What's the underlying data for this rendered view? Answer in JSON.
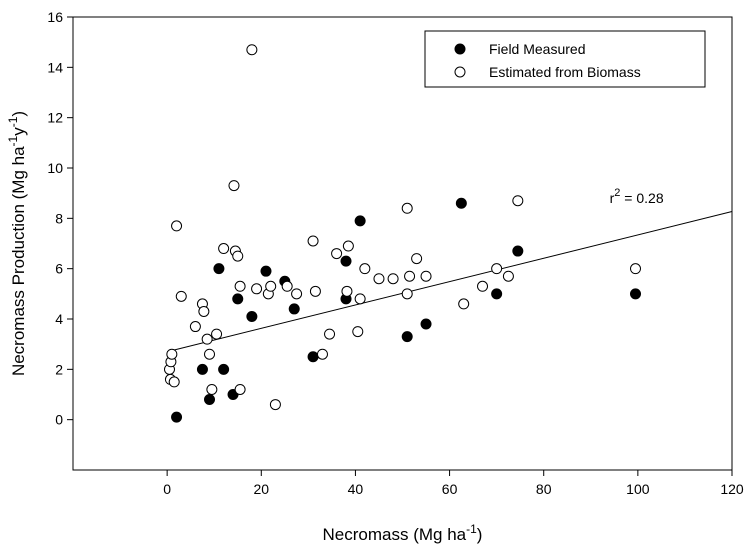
{
  "chart_data": {
    "type": "scatter",
    "title": "",
    "xlabel": {
      "base": "Necromass (Mg ha",
      "sup": "-1",
      "tail": ")"
    },
    "ylabel": {
      "base": "Necromass Production (Mg ha",
      "sup1": "-1",
      "mid": "y",
      "sup2": "-1",
      "tail": ")"
    },
    "xlim": [
      -20,
      120
    ],
    "ylim": [
      -2,
      16
    ],
    "xticks": [
      0,
      20,
      40,
      60,
      80,
      100,
      120
    ],
    "yticks": [
      0,
      2,
      4,
      6,
      8,
      10,
      12,
      14,
      16
    ],
    "grid": false,
    "legend": {
      "position": "top-right"
    },
    "series": [
      {
        "name": "Field Measured",
        "marker": "filled-circle",
        "points": [
          [
            2,
            0.1
          ],
          [
            7.5,
            2.0
          ],
          [
            9,
            0.8
          ],
          [
            11,
            6.0
          ],
          [
            12,
            2.0
          ],
          [
            14,
            1.0
          ],
          [
            15,
            4.8
          ],
          [
            18,
            4.1
          ],
          [
            21,
            5.9
          ],
          [
            25,
            5.5
          ],
          [
            27,
            4.4
          ],
          [
            31,
            2.5
          ],
          [
            38,
            4.8
          ],
          [
            38,
            6.3
          ],
          [
            41,
            7.9
          ],
          [
            51,
            3.3
          ],
          [
            55,
            3.8
          ],
          [
            62.5,
            8.6
          ],
          [
            70,
            5.0
          ],
          [
            74.5,
            6.7
          ],
          [
            99.5,
            5.0
          ]
        ]
      },
      {
        "name": "Estimated from Biomass",
        "marker": "open-circle",
        "points": [
          [
            0.5,
            2.0
          ],
          [
            0.7,
            1.6
          ],
          [
            0.8,
            2.3
          ],
          [
            1,
            2.6
          ],
          [
            1.5,
            1.5
          ],
          [
            2,
            7.7
          ],
          [
            3,
            4.9
          ],
          [
            6,
            3.7
          ],
          [
            7.5,
            4.6
          ],
          [
            7.8,
            4.3
          ],
          [
            8.5,
            3.2
          ],
          [
            9,
            2.6
          ],
          [
            9.5,
            1.2
          ],
          [
            10.5,
            3.4
          ],
          [
            12,
            6.8
          ],
          [
            14.5,
            6.7
          ],
          [
            14.2,
            9.3
          ],
          [
            15,
            6.5
          ],
          [
            15.5,
            5.3
          ],
          [
            15.5,
            1.2
          ],
          [
            18,
            14.7
          ],
          [
            19,
            5.2
          ],
          [
            21.5,
            5.0
          ],
          [
            22,
            5.3
          ],
          [
            23,
            0.6
          ],
          [
            25.5,
            5.3
          ],
          [
            27.5,
            5.0
          ],
          [
            31,
            7.1
          ],
          [
            31.5,
            5.1
          ],
          [
            33,
            2.6
          ],
          [
            34.5,
            3.4
          ],
          [
            36,
            6.6
          ],
          [
            38.2,
            5.1
          ],
          [
            38.5,
            6.9
          ],
          [
            40.5,
            3.5
          ],
          [
            41,
            4.8
          ],
          [
            42,
            6.0
          ],
          [
            45,
            5.6
          ],
          [
            48,
            5.6
          ],
          [
            51,
            8.4
          ],
          [
            51,
            5.0
          ],
          [
            51.5,
            5.7
          ],
          [
            53,
            6.4
          ],
          [
            55,
            5.7
          ],
          [
            63,
            4.6
          ],
          [
            67,
            5.3
          ],
          [
            70,
            6.0
          ],
          [
            72.5,
            5.7
          ],
          [
            74.5,
            8.7
          ],
          [
            99.5,
            6.0
          ]
        ]
      }
    ],
    "regression": {
      "x": [
        0,
        120
      ],
      "y": [
        2.7,
        8.27
      ]
    },
    "annotation": {
      "base": "r",
      "sup": "2",
      "tail": " = 0.28",
      "x": 94,
      "y": 8.6
    }
  }
}
